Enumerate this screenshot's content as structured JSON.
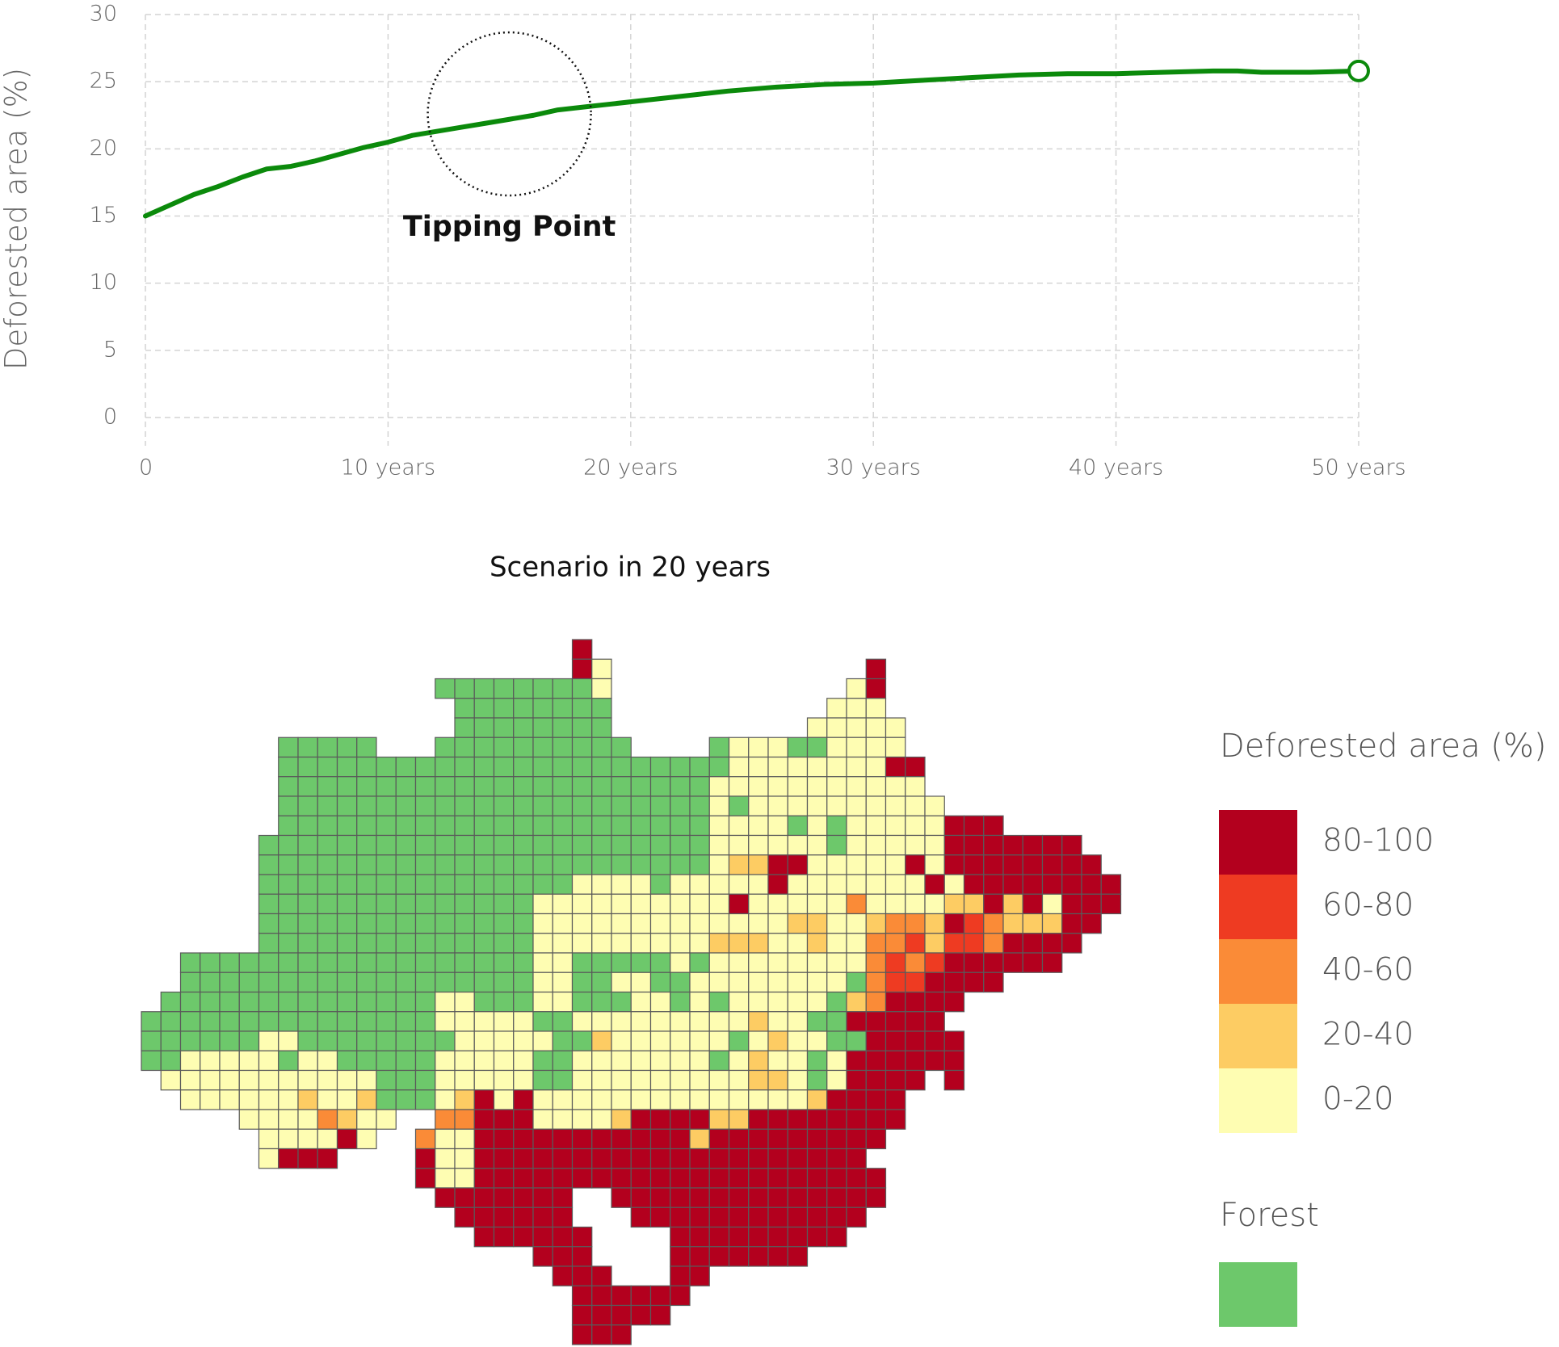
{
  "chart_data": [
    {
      "type": "line",
      "y_label": "Deforested area (%)",
      "x": [
        0,
        1,
        2,
        3,
        4,
        5,
        6,
        7,
        8,
        9,
        10,
        11,
        12,
        13,
        14,
        15,
        16,
        17,
        18,
        19,
        20,
        22,
        24,
        26,
        28,
        30,
        32,
        34,
        36,
        38,
        40,
        42,
        44,
        45,
        46,
        48,
        50
      ],
      "series": [
        {
          "color": "#0b8a0b",
          "values": [
            15,
            15.8,
            16.6,
            17.2,
            17.9,
            18.5,
            18.7,
            19.1,
            19.6,
            20.1,
            20.5,
            21.0,
            21.3,
            21.6,
            21.9,
            22.2,
            22.5,
            22.9,
            23.1,
            23.3,
            23.5,
            23.9,
            24.3,
            24.6,
            24.8,
            24.9,
            25.1,
            25.3,
            25.5,
            25.6,
            25.6,
            25.7,
            25.8,
            25.8,
            25.7,
            25.7,
            25.8
          ]
        }
      ],
      "xlim": [
        0,
        50
      ],
      "ylim": [
        0,
        30
      ],
      "xticks": [
        0,
        {
          "value": 10,
          "label": "10 years"
        },
        {
          "value": 20,
          "label": "20 years"
        },
        {
          "value": 30,
          "label": "30 years"
        },
        {
          "value": 40,
          "label": "40 years"
        },
        {
          "value": 50,
          "label": "50 years"
        }
      ],
      "yticks": [
        0,
        5,
        10,
        15,
        20,
        25,
        30
      ],
      "grid": true,
      "annotations": [
        {
          "text": "Tipping Point",
          "x": 15,
          "y": 22.6
        }
      ]
    },
    {
      "type": "map",
      "title": "Scenario in 20 years",
      "grid": [
        "......................R...........................",
        "......................Ry.............R............",
        "...............ggggggggy............yR............",
        "................gggggggg...........yyy............",
        "................gggggggg..........yyyyy...........",
        ".......ggggg...gggggggggg....gyyyggyyyy...........",
        ".......gggggggggggggggggggggggyyyyyyyyRR..........",
        ".......ggggggggggggggggggggggyyyyyyyyyyy..........",
        ".......ggggggggggggggggggggggygyyyyyyyyyy.........",
        ".......ggggggggggggggggggggggyyyygygyyyyyRRR......",
        "......gggggggggggggggggggggggyyyyyygyyyyyRRRRRRR..",
        "......gggggggggggggggggggggggyooRRyyyyyRyRRRRRRRR.",
        "......ggggggggggggggggyyyygyyyyyRyyyyyyyRyRRRRRRRR",
        "......ggggggggggggggyyyyyyyyyyRyyyyyOyyyyooRoRyRRR",
        "......ggggggggggggggyyyyyyyyyyyyyooyyoOOoRrOoooRR.",
        "......ggggggggggggggyyyyyyyyyoooyyoyyOOrorrORRRR..",
        "..ggggggggggggggggggyygggggygyyyyyyyyOrOrRRRRRR...",
        "..ggggggggggggggggggyyggyyggyyyyyyyygOrrRRRR......",
        ".ggggggggggggggyygggyygggyygygyyyyygoORRRR........",
        "gggggggggggggggyyyyyggyyyyyyyyyoyyggRRRRR.........",
        "ggggggyyggggggggyyyyyggoyyyyyygyoyyggRRRRR........",
        "ggyyyyygyygggggyyyyyggyyyyyyygyoyygyRRRRRR........",
        ".yyyyyyyyyyygggyyyyyggyyyyyyyyyooygyRRRR.R........",
        "..yyyyyyoyyogggyoRyRyyyyyyyyyyyyyyoRRRR...........",
        ".....yyyyOoyy..OORRRyyyyoRRRRooRRRRRRRR...........",
        "......yyyyRy..OyyRRRRRRRRRRRoRRRRRRRRR............",
        "......yRRR....RyyRRRRRRRRRRRRRRRRRRRR.............",
        "..............RyyRRRRRRRRRRRRRRRRRRRRR............",
        "...............RRRRRRR..RRRRRRRRRRRRRR............",
        "................RRRRRR...RRRRRRRRRRRR.............",
        ".................RRRRRR....RRRRRRRRR..............",
        "....................RRR....RRRRRRR................",
        ".....................RRR...RR.....................",
        "......................RRRRRR......................",
        "......................RRRRR.......................",
        "......................RRR........................."
      ],
      "legend_title": "Deforested area (%)",
      "classes": [
        {
          "label": "80-100",
          "color": "#b3001e"
        },
        {
          "label": "60-80",
          "color": "#ee3b22"
        },
        {
          "label": "40-60",
          "color": "#fa8b37"
        },
        {
          "label": "20-40",
          "color": "#fdcc63"
        },
        {
          "label": "0-20",
          "color": "#fefdb2"
        }
      ],
      "forest": {
        "title": "Forest",
        "color": "#6dc86b"
      }
    }
  ]
}
